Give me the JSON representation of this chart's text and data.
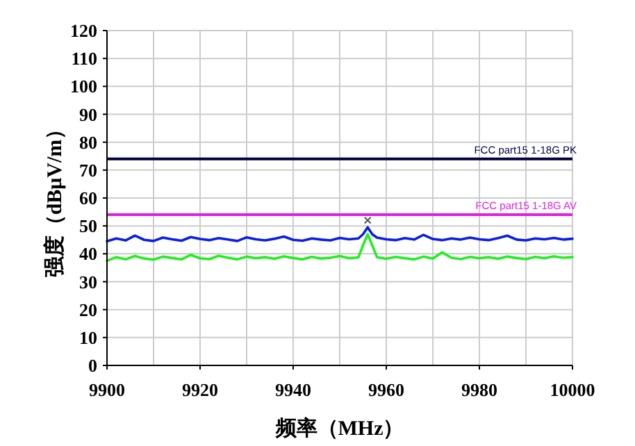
{
  "chart_data": {
    "type": "line",
    "xlabel": "频率（MHz）",
    "ylabel": "强度（dBμV/m）",
    "xlim": [
      9900,
      10000
    ],
    "xticks": [
      9900,
      9920,
      9940,
      9960,
      9980,
      10000
    ],
    "ylim": [
      0,
      120
    ],
    "yticks": [
      0,
      10,
      20,
      30,
      40,
      50,
      60,
      70,
      80,
      90,
      100,
      110,
      120
    ],
    "grid": true,
    "x": [
      9900,
      9902,
      9904,
      9906,
      9908,
      9910,
      9912,
      9914,
      9916,
      9918,
      9920,
      9922,
      9924,
      9926,
      9928,
      9930,
      9932,
      9934,
      9936,
      9938,
      9940,
      9942,
      9944,
      9946,
      9948,
      9950,
      9952,
      9954,
      9955,
      9956,
      9957,
      9958,
      9960,
      9962,
      9964,
      9966,
      9968,
      9970,
      9972,
      9974,
      9976,
      9978,
      9980,
      9982,
      9984,
      9986,
      9988,
      9990,
      9992,
      9994,
      9996,
      9998,
      10000
    ],
    "series": [
      {
        "color": "#0a1ee6",
        "line_style": "solid",
        "marker": "none",
        "values": [
          44.5,
          45.5,
          44.8,
          46.5,
          45,
          44.6,
          45.8,
          45.2,
          44.7,
          46,
          45.3,
          44.9,
          45.6,
          45.1,
          44.6,
          45.9,
          45.2,
          44.8,
          45.4,
          46.2,
          45,
          44.7,
          45.5,
          45.1,
          44.8,
          45.7,
          45.2,
          45.5,
          47,
          49.5,
          47,
          45.8,
          45.2,
          44.9,
          45.6,
          45.1,
          46.8,
          45.3,
          44.9,
          45.5,
          45.1,
          45.8,
          45.2,
          44.9,
          45.6,
          46.5,
          45.1,
          44.8,
          45.5,
          45.2,
          45.7,
          45.1,
          45.4
        ]
      },
      {
        "color": "#22ee22",
        "line_style": "solid",
        "marker": "none",
        "values": [
          37.5,
          38.8,
          38,
          39.2,
          38.3,
          37.9,
          39,
          38.5,
          38,
          39.6,
          38.4,
          38.1,
          39.3,
          38.6,
          38,
          39,
          38.4,
          38.8,
          38.2,
          39.1,
          38.5,
          38,
          38.9,
          38.3,
          38.6,
          39.2,
          38.4,
          38.7,
          43,
          47,
          43,
          38.8,
          38.2,
          38.9,
          38.4,
          38,
          39,
          38.3,
          40.5,
          38.6,
          38.1,
          38.9,
          38.4,
          38.8,
          38.2,
          39,
          38.5,
          38.1,
          38.9,
          38.4,
          39.1,
          38.6,
          38.8
        ]
      },
      {
        "type": "scatter",
        "color": "#555555",
        "marker": "cross",
        "x": [
          9956
        ],
        "values": [
          52
        ]
      }
    ],
    "ref_lines": [
      {
        "axis": "y",
        "value": 74,
        "label": "FCC part15 1-18G PK",
        "color": "#000040",
        "line_style": "solid"
      },
      {
        "axis": "y",
        "value": 54,
        "label": "FCC part15 1-18G AV",
        "color": "#e020e0",
        "line_style": "solid"
      }
    ]
  }
}
